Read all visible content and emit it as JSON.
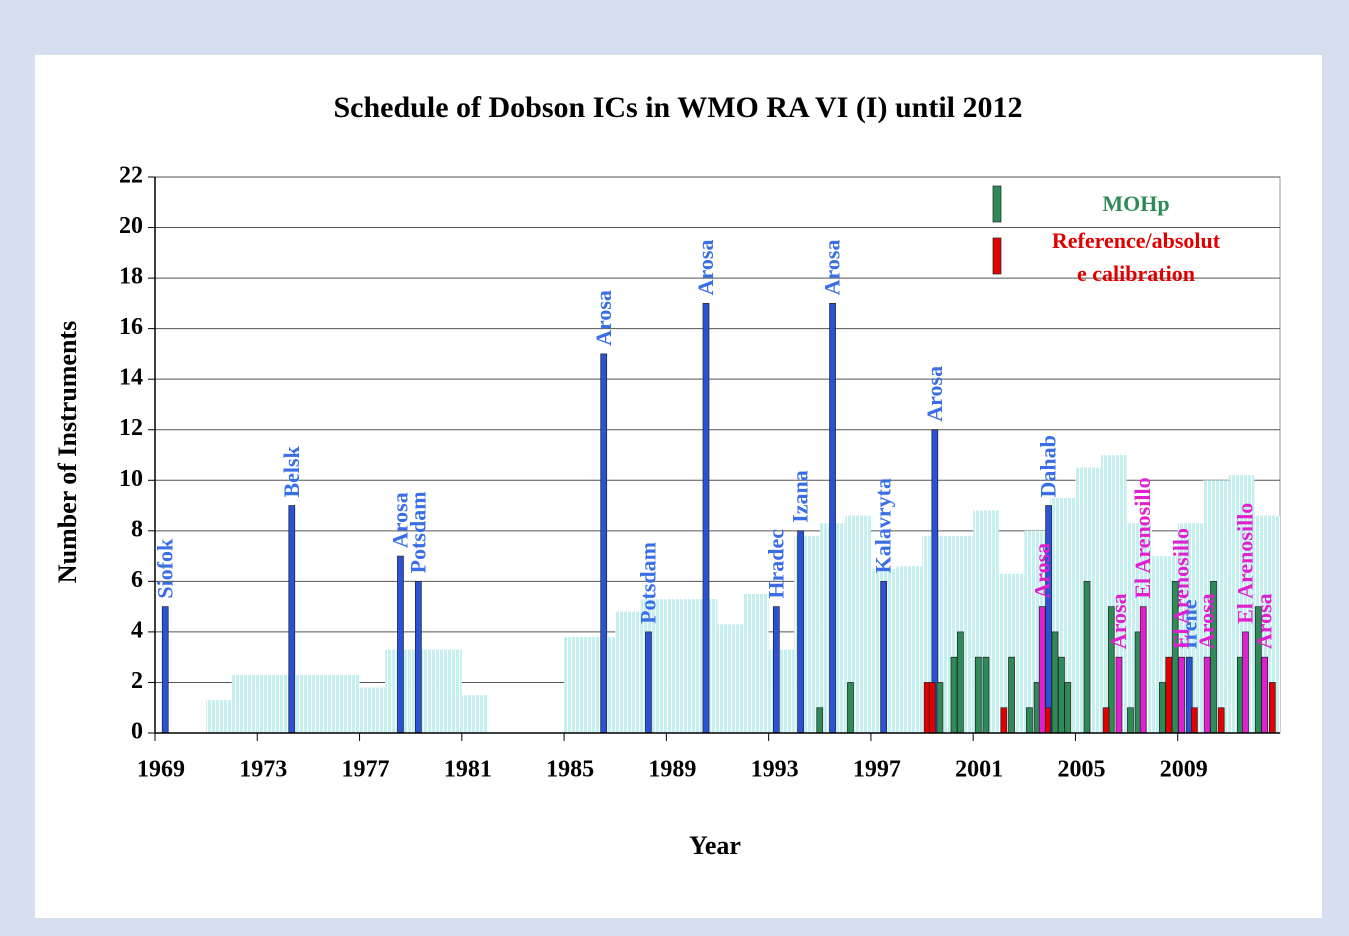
{
  "chart_data": {
    "type": "bar",
    "title": "Schedule of Dobson ICs in WMO RA VI (I) until 2012",
    "x_label": "Year",
    "y_label": "Number of Instruments",
    "xlim": [
      1969,
      2013
    ],
    "xticks": [
      1969,
      1973,
      1977,
      1981,
      1985,
      1989,
      1993,
      1997,
      2001,
      2005,
      2009
    ],
    "ylim": [
      0,
      22
    ],
    "yticks": [
      0,
      2,
      4,
      6,
      8,
      10,
      12,
      14,
      16,
      18,
      20,
      22
    ],
    "grid": true,
    "legend": "top-right",
    "series": [
      {
        "color": "#c4f0f0",
        "x": [
          1971,
          1972,
          1973,
          1974,
          1975,
          1976,
          1977,
          1978,
          1979,
          1980,
          1981,
          1985,
          1986,
          1987,
          1988,
          1989,
          1990,
          1991,
          1992,
          1993,
          1994,
          1995,
          1996,
          1997,
          1998,
          1999,
          2000,
          2001,
          2002,
          2003,
          2004,
          2005,
          2006,
          2007,
          2008,
          2009,
          2010,
          2011,
          2012
        ],
        "values": [
          1.3,
          2.3,
          2.3,
          2.3,
          2.3,
          2.3,
          1.8,
          3.3,
          3.3,
          3.3,
          1.5,
          3.8,
          3.8,
          4.8,
          5.3,
          5.3,
          5.3,
          4.3,
          5.5,
          3.3,
          7.8,
          8.3,
          8.6,
          6.5,
          6.6,
          7.8,
          7.8,
          8.8,
          6.3,
          8.0,
          9.3,
          10.5,
          11.0,
          8.3,
          7.0,
          8.3,
          10.0,
          10.2,
          8.6
        ]
      },
      {
        "color": "#2a52d6",
        "label_color": "#3a6ee6",
        "x": [
          1969.4,
          1974.35,
          1978.6,
          1979.3,
          1986.55,
          1988.3,
          1990.55,
          1993.3,
          1994.25,
          1995.5,
          1997.5,
          1999.5,
          2003.95,
          2009.45
        ],
        "values": [
          5,
          9,
          7,
          6,
          15,
          4,
          17,
          5,
          8,
          17,
          6,
          12,
          9,
          3
        ],
        "labels": [
          "Siofok",
          "Belsk",
          "Arosa",
          "Potsdam",
          "Arosa",
          "Potsdam",
          "Arosa",
          "Hradec",
          "Izana",
          "Arosa",
          "Kalavryta",
          "Arosa",
          "Dahab",
          "Irene"
        ]
      },
      {
        "name": "MOHp",
        "color": "#2e8b57",
        "x": [
          1995.0,
          1996.2,
          1999.7,
          2000.25,
          2000.5,
          2001.2,
          2001.5,
          2002.5,
          2003.2,
          2003.5,
          2004.2,
          2004.45,
          2004.7,
          2005.45,
          2006.4,
          2007.15,
          2007.45,
          2008.4,
          2008.9,
          2010.4,
          2011.45,
          2012.15
        ],
        "values": [
          1,
          2,
          2,
          3,
          4,
          3,
          3,
          3,
          1,
          2,
          4,
          3,
          2,
          6,
          5,
          1,
          4,
          2,
          6,
          6,
          3,
          5
        ]
      },
      {
        "name": "Reference/absolute calibration",
        "color": "#e00000",
        "x": [
          1999.2,
          1999.4,
          2002.2,
          2003.9,
          2006.2,
          2008.65,
          2009.65,
          2010.7,
          2012.7
        ],
        "values": [
          2,
          2,
          1,
          1,
          1,
          3,
          1,
          1,
          2
        ]
      },
      {
        "color": "#e020d0",
        "label_color": "#e020d0",
        "x": [
          2003.7,
          2006.7,
          2007.65,
          2009.15,
          2010.15,
          2011.65,
          2012.4
        ],
        "values": [
          5,
          3,
          5,
          3,
          3,
          4,
          3
        ],
        "labels": [
          "Arosa",
          "Arosa",
          "El Arenosillo",
          "El Arenosillo",
          "Arosa",
          "El Arenosillo",
          "Arosa"
        ]
      }
    ]
  }
}
